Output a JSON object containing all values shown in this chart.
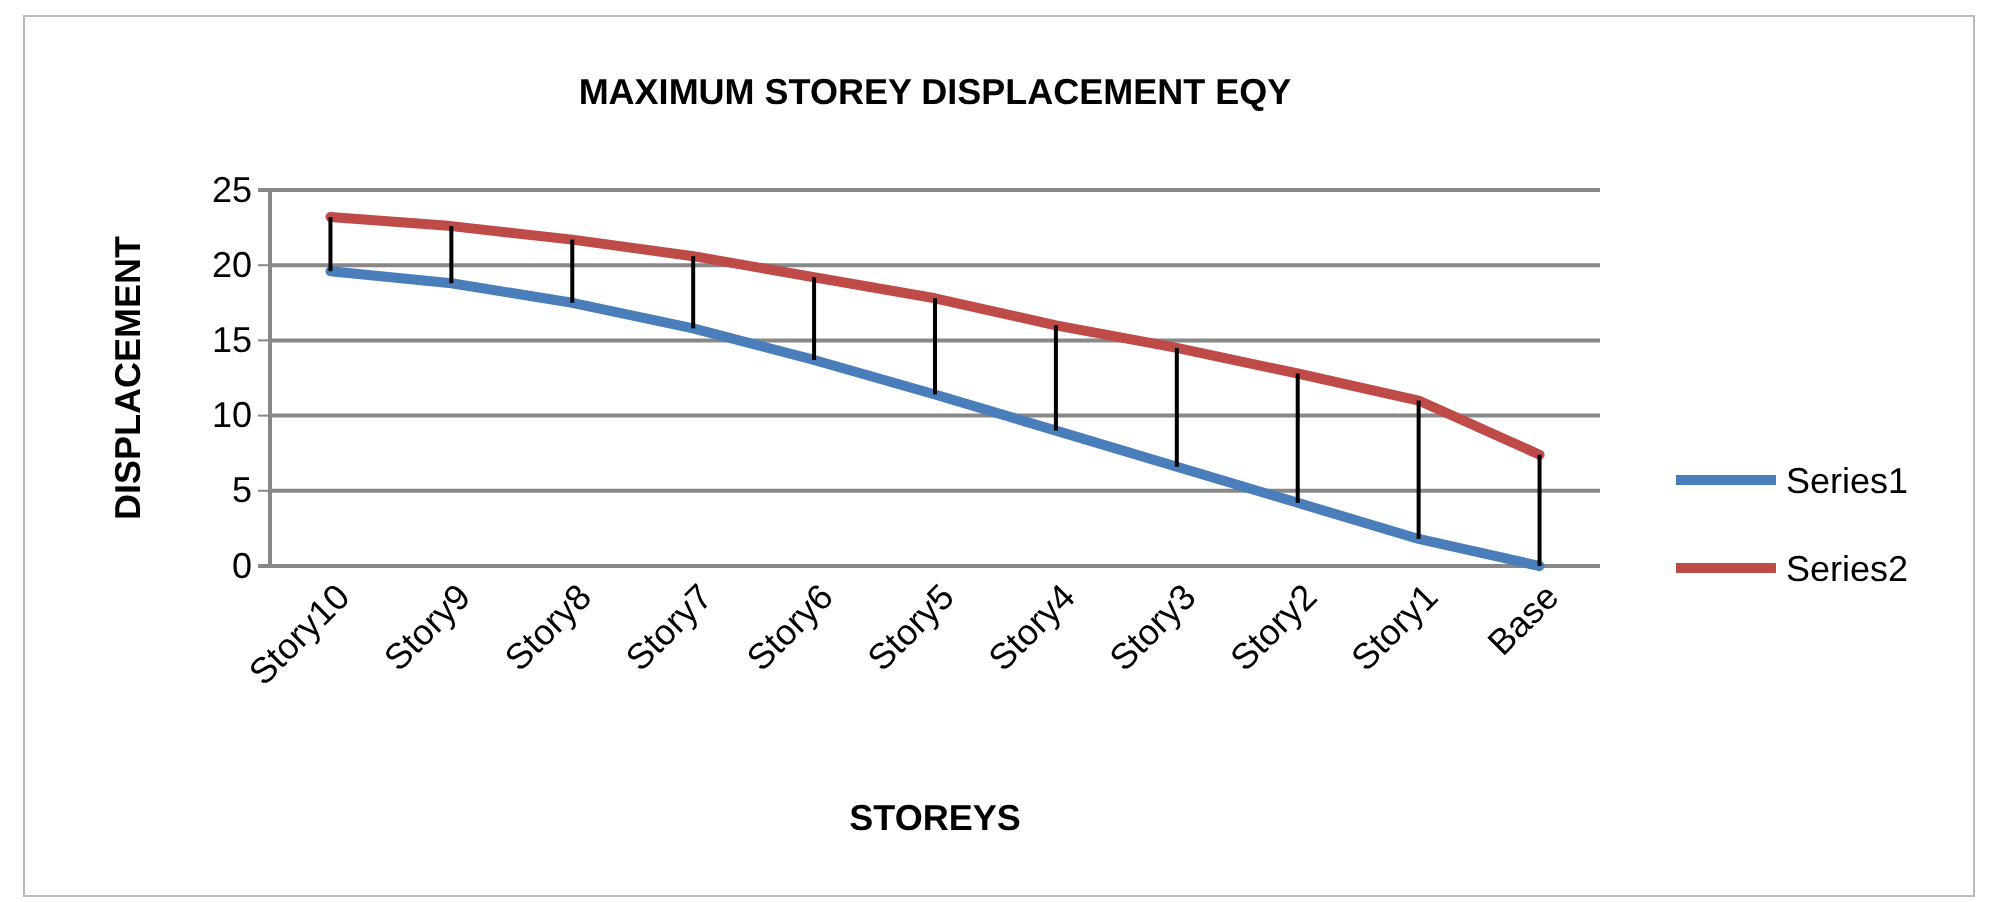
{
  "chart_data": {
    "type": "line",
    "title": "MAXIMUM STOREY DISPLACEMENT EQY",
    "xlabel": "STOREYS",
    "ylabel": "DISPLACEMENT",
    "categories": [
      "Story10",
      "Story9",
      "Story8",
      "Story7",
      "Story6",
      "Story5",
      "Story4",
      "Story3",
      "Story2",
      "Story1",
      "Base"
    ],
    "series": [
      {
        "name": "Series1",
        "color": "#4a7ebb",
        "values": [
          19.6,
          18.8,
          17.5,
          15.8,
          13.7,
          11.4,
          9.0,
          6.6,
          4.2,
          1.8,
          0
        ],
        "errors": [
          [
            19.6,
            23.2
          ],
          [
            18.8,
            22.6
          ],
          [
            17.5,
            21.7
          ],
          [
            15.8,
            20.6
          ],
          [
            13.7,
            19.2
          ],
          [
            11.4,
            17.8
          ],
          [
            9.0,
            16.0
          ],
          [
            6.6,
            14.5
          ],
          [
            4.2,
            12.8
          ],
          [
            1.8,
            11.0
          ],
          [
            0,
            7.4
          ]
        ]
      },
      {
        "name": "Series2",
        "color": "#be4b48",
        "values": [
          23.2,
          22.6,
          21.7,
          20.6,
          19.2,
          17.8,
          16.0,
          14.5,
          12.8,
          11.0,
          7.4
        ]
      }
    ],
    "ylim": [
      0,
      25
    ],
    "yticks": [
      0,
      5,
      10,
      15,
      20,
      25
    ],
    "grid": "y",
    "legend": "right",
    "marker": "none",
    "line_style": "solid"
  }
}
